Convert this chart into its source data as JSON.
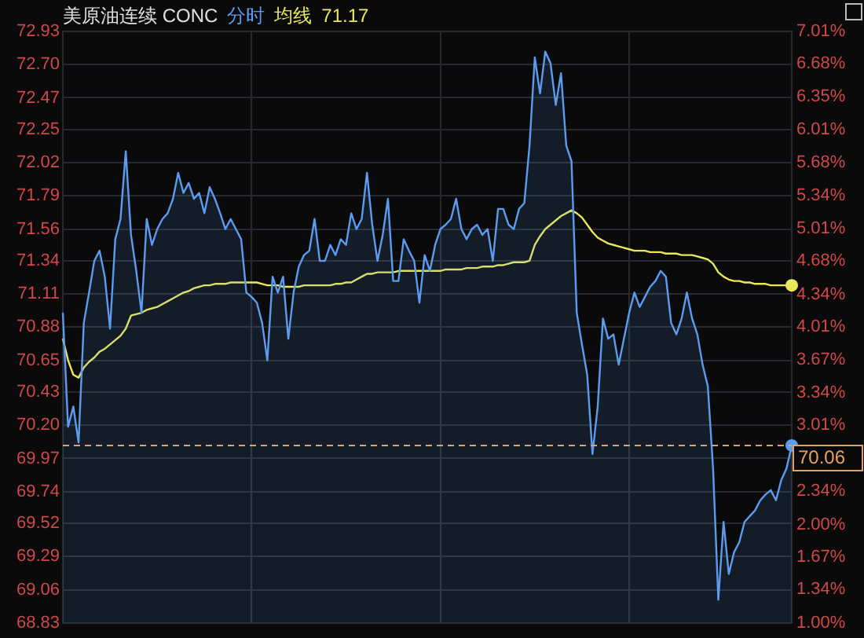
{
  "chart_data": {
    "type": "line",
    "title": "美原油连续 CONC",
    "categories": [
      null,
      null,
      null,
      null,
      null,
      null,
      null,
      null,
      null,
      null,
      null,
      null,
      null,
      null,
      null,
      null,
      null,
      null,
      null,
      null,
      null,
      null,
      null,
      null,
      null,
      null,
      null,
      null,
      null,
      null,
      null,
      null,
      null,
      null,
      null,
      null,
      null,
      null,
      null,
      null,
      null,
      null,
      null,
      null,
      null,
      null,
      null,
      null,
      null,
      null,
      null,
      null,
      null,
      null,
      null,
      null,
      null,
      null,
      null,
      null,
      null,
      null,
      null,
      null,
      null,
      null,
      null,
      null,
      null,
      null,
      null,
      null,
      null,
      null,
      null,
      null,
      null,
      null,
      null,
      null,
      null,
      null,
      null,
      null,
      null,
      null,
      null,
      null,
      null,
      null,
      null,
      null,
      null,
      null,
      null,
      null,
      null,
      null,
      null,
      null,
      null,
      null,
      null,
      null,
      null,
      null,
      null,
      null,
      null,
      null,
      null,
      null,
      null,
      null,
      null,
      null,
      null,
      null,
      null,
      null,
      null,
      null,
      null,
      null,
      null,
      null,
      null,
      null,
      null,
      null,
      null,
      null,
      null,
      null,
      null,
      null,
      null,
      null,
      null,
      null
    ],
    "series": [
      {
        "name": "分时",
        "type": "area",
        "color": "#5b9cf0",
        "values": [
          70.98,
          70.19,
          70.33,
          70.08,
          70.91,
          71.12,
          71.34,
          71.41,
          71.23,
          70.87,
          71.49,
          71.63,
          72.1,
          71.52,
          71.27,
          70.98,
          71.63,
          71.45,
          71.56,
          71.63,
          71.67,
          71.77,
          71.95,
          71.81,
          71.88,
          71.77,
          71.81,
          71.67,
          71.85,
          71.77,
          71.67,
          71.56,
          71.63,
          71.56,
          71.49,
          71.12,
          71.09,
          71.05,
          70.91,
          70.65,
          71.23,
          71.12,
          71.23,
          70.8,
          71.12,
          71.3,
          71.38,
          71.41,
          71.63,
          71.34,
          71.34,
          71.45,
          71.38,
          71.49,
          71.45,
          71.67,
          71.56,
          71.63,
          71.95,
          71.59,
          71.34,
          71.52,
          71.77,
          71.2,
          71.2,
          71.49,
          71.41,
          71.34,
          71.05,
          71.38,
          71.27,
          71.45,
          71.56,
          71.59,
          71.63,
          71.77,
          71.56,
          71.49,
          71.56,
          71.59,
          71.52,
          71.56,
          71.34,
          71.7,
          71.7,
          71.59,
          71.56,
          71.7,
          71.74,
          72.14,
          72.75,
          72.5,
          72.79,
          72.71,
          72.42,
          72.64,
          72.14,
          72.03,
          70.98,
          70.76,
          70.55,
          70.0,
          70.33,
          70.94,
          70.8,
          70.83,
          70.62,
          70.8,
          70.98,
          71.12,
          71.02,
          71.09,
          71.16,
          71.2,
          71.27,
          71.23,
          70.91,
          70.83,
          70.94,
          71.12,
          70.94,
          70.83,
          70.62,
          70.47,
          69.9,
          68.99,
          69.53,
          69.17,
          69.32,
          69.39,
          69.53,
          69.57,
          69.61,
          69.68,
          69.72,
          69.75,
          69.68,
          69.82,
          69.9,
          70.06
        ]
      },
      {
        "name": "均线",
        "type": "line",
        "color": "#e8e85a",
        "values": [
          70.8,
          70.65,
          70.55,
          70.53,
          70.6,
          70.64,
          70.67,
          70.71,
          70.73,
          70.76,
          70.79,
          70.82,
          70.87,
          70.96,
          70.97,
          70.98,
          71.0,
          71.01,
          71.02,
          71.04,
          71.06,
          71.08,
          71.1,
          71.12,
          71.13,
          71.15,
          71.16,
          71.17,
          71.17,
          71.18,
          71.18,
          71.18,
          71.19,
          71.19,
          71.19,
          71.19,
          71.19,
          71.19,
          71.18,
          71.17,
          71.17,
          71.17,
          71.16,
          71.16,
          71.16,
          71.16,
          71.17,
          71.17,
          71.17,
          71.17,
          71.17,
          71.17,
          71.18,
          71.18,
          71.19,
          71.19,
          71.21,
          71.23,
          71.25,
          71.25,
          71.26,
          71.26,
          71.26,
          71.26,
          71.27,
          71.27,
          71.27,
          71.27,
          71.27,
          71.27,
          71.27,
          71.27,
          71.27,
          71.28,
          71.28,
          71.28,
          71.28,
          71.29,
          71.29,
          71.29,
          71.3,
          71.3,
          71.3,
          71.31,
          71.31,
          71.32,
          71.33,
          71.33,
          71.33,
          71.34,
          71.45,
          71.51,
          71.56,
          71.59,
          71.62,
          71.65,
          71.67,
          71.69,
          71.67,
          71.64,
          71.59,
          71.54,
          71.5,
          71.48,
          71.46,
          71.45,
          71.44,
          71.43,
          71.42,
          71.41,
          71.41,
          71.41,
          71.4,
          71.4,
          71.4,
          71.39,
          71.39,
          71.39,
          71.38,
          71.38,
          71.38,
          71.37,
          71.36,
          71.35,
          71.32,
          71.26,
          71.23,
          71.21,
          71.2,
          71.2,
          71.19,
          71.19,
          71.18,
          71.18,
          71.18,
          71.17,
          71.17,
          71.17,
          71.17,
          71.17
        ]
      }
    ],
    "ylim": [
      68.83,
      72.93
    ],
    "yticks": [
      68.83,
      69.06,
      69.29,
      69.52,
      69.74,
      69.97,
      {
        "value": 70.2,
        "label": "70.20"
      },
      70.43,
      70.65,
      70.88,
      71.11,
      71.34,
      71.56,
      71.79,
      72.02,
      72.25,
      72.47,
      {
        "value": 72.7,
        "label": "72.70"
      },
      72.93
    ],
    "y2lim": [
      1.0,
      7.01
    ],
    "y2ticks": [
      {
        "value": 1.0,
        "label": "1.00%"
      },
      {
        "value": 1.34,
        "label": "1.34%"
      },
      {
        "value": 1.67,
        "label": "1.67%"
      },
      {
        "value": 2.0,
        "label": "2.00%"
      },
      {
        "value": 2.34,
        "label": "2.34%"
      },
      {
        "value": 2.67,
        "label": null
      },
      {
        "value": 3.01,
        "label": "3.01%"
      },
      {
        "value": 3.34,
        "label": "3.34%"
      },
      {
        "value": 3.67,
        "label": "3.67%"
      },
      {
        "value": 4.01,
        "label": "4.01%"
      },
      {
        "value": 4.34,
        "label": "4.34%"
      },
      {
        "value": 4.68,
        "label": "4.68%"
      },
      {
        "value": 5.01,
        "label": "5.01%"
      },
      {
        "value": 5.34,
        "label": "5.34%"
      },
      {
        "value": 5.68,
        "label": "5.68%"
      },
      {
        "value": 6.01,
        "label": "6.01%"
      },
      {
        "value": 6.35,
        "label": "6.35%"
      },
      {
        "value": 6.68,
        "label": "6.68%"
      },
      {
        "value": 7.01,
        "label": "7.01%"
      }
    ],
    "ref_lines": [
      {
        "axis": "y",
        "value": 70.06,
        "label": "70.06",
        "color": "#e8a060",
        "line_style": "dashed"
      }
    ],
    "annotations": [
      "71.17"
    ],
    "grid": true,
    "legend": "top"
  }
}
